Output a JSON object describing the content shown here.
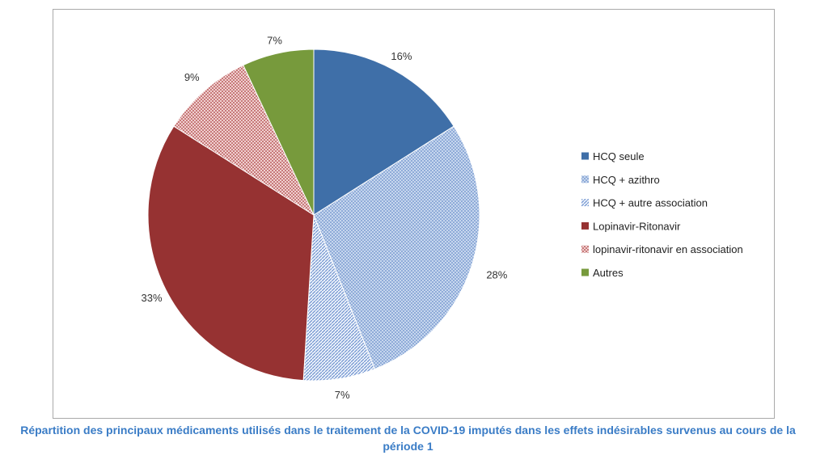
{
  "caption": "Répartition des principaux médicaments utilisés dans le traitement de la COVID-19 imputés dans les effets indésirables survenus au cours de la période 1",
  "chart_data": {
    "type": "pie",
    "title": "",
    "legend_position": "right",
    "slices": [
      {
        "label": "HCQ seule",
        "value": 16,
        "value_label": "16%",
        "color": "#3f6fa8",
        "pattern": "solid"
      },
      {
        "label": "HCQ + azithro",
        "value": 28,
        "value_label": "28%",
        "color": "#9db7dd",
        "pattern": "checker"
      },
      {
        "label": "HCQ + autre association",
        "value": 7,
        "value_label": "7%",
        "color": "#7a9fd4",
        "pattern": "diagonal"
      },
      {
        "label": "Lopinavir-Ritonavir",
        "value": 33,
        "value_label": "33%",
        "color": "#963232",
        "pattern": "solid"
      },
      {
        "label": "lopinavir-ritonavir en association",
        "value": 9,
        "value_label": "9%",
        "color": "#d69595",
        "pattern": "checker"
      },
      {
        "label": "Autres",
        "value": 7,
        "value_label": "7%",
        "color": "#779a3c",
        "pattern": "solid"
      }
    ]
  }
}
